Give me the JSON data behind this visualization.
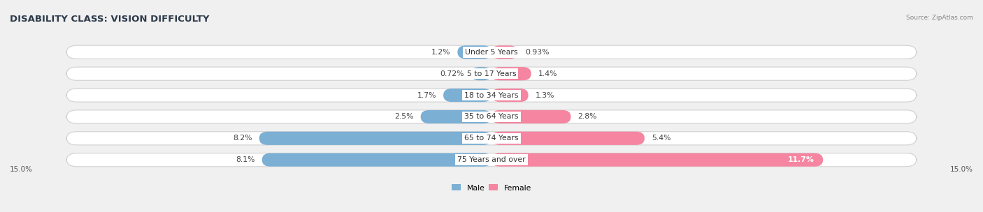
{
  "title": "DISABILITY CLASS: VISION DIFFICULTY",
  "source": "Source: ZipAtlas.com",
  "categories": [
    "Under 5 Years",
    "5 to 17 Years",
    "18 to 34 Years",
    "35 to 64 Years",
    "65 to 74 Years",
    "75 Years and over"
  ],
  "male_values": [
    1.2,
    0.72,
    1.7,
    2.5,
    8.2,
    8.1
  ],
  "female_values": [
    0.93,
    1.4,
    1.3,
    2.8,
    5.4,
    11.7
  ],
  "male_color": "#7bafd4",
  "female_color": "#f585a0",
  "male_label": "Male",
  "female_label": "Female",
  "max_val": 15.0,
  "background_color": "#f0f0f0",
  "bar_bg_color": "#ffffff",
  "title_fontsize": 9.5,
  "label_fontsize": 7.8,
  "cat_fontsize": 7.8,
  "bar_height": 0.62,
  "axis_label_left": "15.0%",
  "axis_label_right": "15.0%"
}
